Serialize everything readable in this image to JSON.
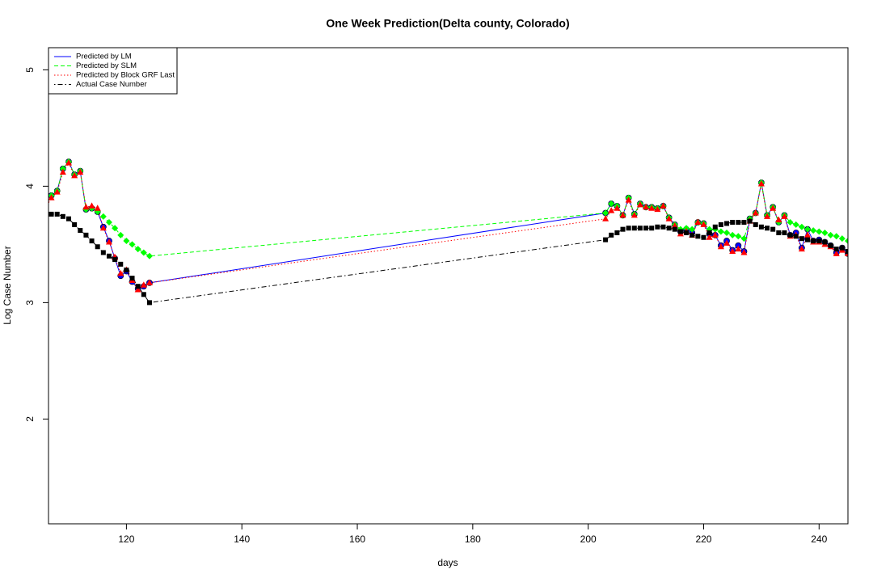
{
  "chart_data": {
    "type": "line",
    "title": "One Week Prediction(Delta county, Colorado)",
    "xlabel": "days",
    "ylabel": "Log Case Number",
    "x": [
      106,
      107,
      108,
      109,
      110,
      111,
      112,
      113,
      114,
      115,
      116,
      117,
      118,
      119,
      120,
      121,
      122,
      123,
      124,
      203,
      204,
      205,
      206,
      207,
      208,
      209,
      210,
      211,
      212,
      213,
      214,
      215,
      216,
      217,
      218,
      219,
      220,
      221,
      222,
      223,
      224,
      225,
      226,
      227,
      228,
      229,
      230,
      231,
      232,
      233,
      234,
      235,
      236,
      237,
      238,
      239,
      240,
      241,
      242,
      243,
      244,
      245
    ],
    "xlim": [
      106.5,
      245
    ],
    "xticks": [
      120,
      140,
      160,
      180,
      200,
      220,
      240
    ],
    "ylim": [
      1.1,
      5.19
    ],
    "yticks": [
      2,
      3,
      4,
      5
    ],
    "legend": "top-left",
    "series": [
      {
        "name": "Predicted by LM",
        "color": "#0000ff",
        "line_style": "solid",
        "marker": "circle",
        "values": [
          3.83,
          3.92,
          3.96,
          4.15,
          4.21,
          4.1,
          4.13,
          3.8,
          3.81,
          3.78,
          3.65,
          3.53,
          3.38,
          3.23,
          3.27,
          3.18,
          3.12,
          3.14,
          3.17,
          3.77,
          3.85,
          3.83,
          3.75,
          3.9,
          3.76,
          3.85,
          3.82,
          3.82,
          3.81,
          3.83,
          3.73,
          3.67,
          3.61,
          3.63,
          3.6,
          3.69,
          3.68,
          3.59,
          3.58,
          3.49,
          3.53,
          3.45,
          3.49,
          3.44,
          3.72,
          3.77,
          4.03,
          3.75,
          3.82,
          3.69,
          3.75,
          3.58,
          3.6,
          3.47,
          3.63,
          3.53,
          3.54,
          3.52,
          3.49,
          3.43,
          3.47,
          3.42
        ]
      },
      {
        "name": "Predicted by SLM",
        "color": "#00ff00",
        "line_style": "dashed",
        "marker": "diamond",
        "values": [
          3.83,
          3.92,
          3.96,
          4.15,
          4.21,
          4.1,
          4.13,
          3.8,
          3.81,
          3.78,
          3.74,
          3.69,
          3.64,
          3.58,
          3.53,
          3.5,
          3.46,
          3.43,
          3.4,
          3.77,
          3.85,
          3.83,
          3.75,
          3.9,
          3.76,
          3.85,
          3.82,
          3.82,
          3.81,
          3.83,
          3.73,
          3.67,
          3.63,
          3.64,
          3.63,
          3.69,
          3.68,
          3.63,
          3.63,
          3.61,
          3.6,
          3.58,
          3.57,
          3.55,
          3.72,
          3.77,
          4.03,
          3.75,
          3.82,
          3.69,
          3.75,
          3.69,
          3.67,
          3.65,
          3.63,
          3.62,
          3.61,
          3.6,
          3.58,
          3.57,
          3.55,
          3.53
        ]
      },
      {
        "name": "Predicted by Block GRF Last",
        "color": "#ff0000",
        "line_style": "dotted",
        "marker": "triangle",
        "values": [
          3.81,
          3.9,
          3.95,
          4.12,
          4.2,
          4.09,
          4.12,
          3.82,
          3.83,
          3.81,
          3.64,
          3.52,
          3.39,
          3.25,
          3.28,
          3.19,
          3.11,
          3.15,
          3.17,
          3.72,
          3.79,
          3.81,
          3.75,
          3.88,
          3.75,
          3.84,
          3.82,
          3.81,
          3.8,
          3.83,
          3.72,
          3.66,
          3.59,
          3.61,
          3.58,
          3.69,
          3.67,
          3.56,
          3.58,
          3.48,
          3.51,
          3.44,
          3.46,
          3.43,
          3.7,
          3.77,
          4.02,
          3.74,
          3.81,
          3.71,
          3.74,
          3.57,
          3.58,
          3.46,
          3.58,
          3.52,
          3.52,
          3.5,
          3.48,
          3.42,
          3.45,
          3.42
        ]
      },
      {
        "name": "Actual Case Number",
        "color": "#000000",
        "line_style": "dotdash",
        "marker": "square",
        "values": [
          3.75,
          3.76,
          3.76,
          3.74,
          3.72,
          3.67,
          3.62,
          3.58,
          3.53,
          3.48,
          3.43,
          3.4,
          3.37,
          3.33,
          3.28,
          3.21,
          3.14,
          3.07,
          3.0,
          3.54,
          3.58,
          3.6,
          3.63,
          3.64,
          3.64,
          3.64,
          3.64,
          3.64,
          3.65,
          3.65,
          3.64,
          3.63,
          3.61,
          3.6,
          3.58,
          3.57,
          3.56,
          3.6,
          3.65,
          3.67,
          3.68,
          3.69,
          3.69,
          3.69,
          3.7,
          3.67,
          3.65,
          3.64,
          3.63,
          3.6,
          3.6,
          3.58,
          3.57,
          3.55,
          3.54,
          3.53,
          3.53,
          3.52,
          3.49,
          3.46,
          3.47,
          3.44
        ]
      }
    ]
  }
}
